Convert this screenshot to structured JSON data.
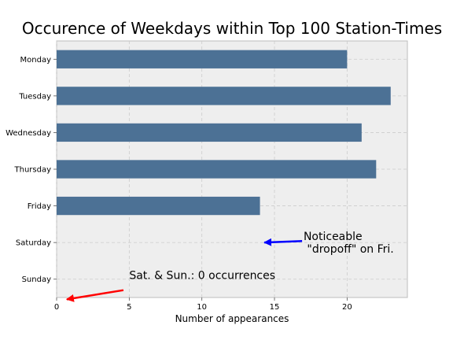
{
  "chart_data": {
    "type": "bar",
    "orientation": "horizontal",
    "title": "Occurence of Weekdays within Top 100 Station-Times",
    "xlabel": "Number of appearances",
    "ylabel": "",
    "categories": [
      "Monday",
      "Tuesday",
      "Wednesday",
      "Thursday",
      "Friday",
      "Saturday",
      "Sunday"
    ],
    "values": [
      20,
      23,
      21,
      22,
      14,
      0,
      0
    ],
    "xlim": [
      0,
      24.15
    ],
    "xticks": [
      0,
      5,
      10,
      15,
      20
    ],
    "grid": true,
    "bar_color": "#4c7195",
    "annotations": [
      {
        "text_lines": [
          "Noticeable",
          " \"dropoff\" on Fri."
        ],
        "text_at": [
          17,
          5.1
        ],
        "arrow_to": [
          14.3,
          5.0
        ],
        "arrow_from": [
          16.9,
          4.96
        ],
        "color": "#0000ff"
      },
      {
        "text_lines": [
          "Sat. & Sun.: 0 occurrences"
        ],
        "text_at": [
          5,
          6.0
        ],
        "arrow_to": [
          0.7,
          6.55
        ],
        "arrow_from": [
          4.6,
          6.3
        ],
        "color": "#ff0000"
      }
    ]
  },
  "colors": {
    "axes_bg": "#eeeeee",
    "grid": "#cbcbcb",
    "spine": "#bcbcbc"
  }
}
